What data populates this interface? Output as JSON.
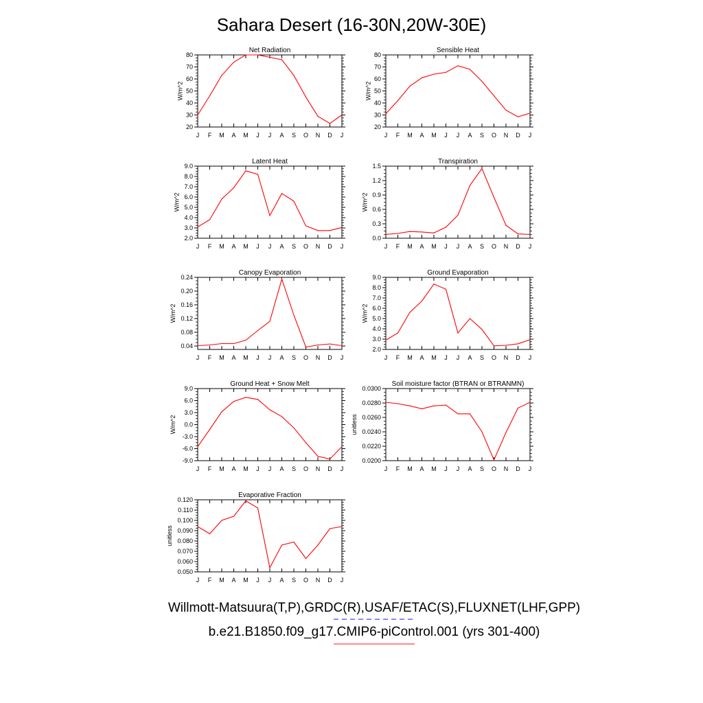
{
  "title": "Sahara Desert (16-30N,20W-30E)",
  "legend": {
    "line1": "Willmott-Matsuura(T,P),GRDC(R),USAF/ETAC(S),FLUXNET(LHF,GPP)",
    "line1_color": "#4040ff",
    "line2": "b.e21.B1850.f09_g17.CMIP6-piControl.001 (yrs 301-400)",
    "line2_color": "#ff4040"
  },
  "line_color": "#ff0000",
  "chart_data": [
    {
      "type": "line",
      "title": "Net Radiation",
      "ylabel": "W/m^2",
      "categories": [
        "J",
        "F",
        "M",
        "A",
        "M",
        "J",
        "J",
        "A",
        "S",
        "O",
        "N",
        "D",
        "J"
      ],
      "values": [
        30,
        46,
        63,
        74,
        80,
        80,
        78,
        76,
        63,
        45,
        29,
        23,
        30
      ],
      "ylim": [
        20,
        80
      ],
      "yticks": [
        "20",
        "30",
        "40",
        "50",
        "60",
        "70",
        "80"
      ]
    },
    {
      "type": "line",
      "title": "Sensible Heat",
      "ylabel": "W/m^2",
      "categories": [
        "J",
        "F",
        "M",
        "A",
        "M",
        "J",
        "J",
        "A",
        "S",
        "O",
        "N",
        "D",
        "J"
      ],
      "values": [
        31,
        42,
        54,
        61,
        64,
        65.5,
        71,
        68,
        58,
        46,
        34,
        28.5,
        31.5
      ],
      "ylim": [
        20,
        80
      ],
      "yticks": [
        "20",
        "30",
        "40",
        "50",
        "60",
        "70",
        "80"
      ]
    },
    {
      "type": "line",
      "title": "Latent Heat",
      "ylabel": "W/m^2",
      "categories": [
        "J",
        "F",
        "M",
        "A",
        "M",
        "J",
        "J",
        "A",
        "S",
        "O",
        "N",
        "D",
        "J"
      ],
      "values": [
        3.1,
        3.8,
        5.8,
        6.9,
        8.55,
        8.2,
        4.2,
        6.35,
        5.6,
        3.2,
        2.75,
        2.75,
        3.05
      ],
      "ylim": [
        2.0,
        9.0
      ],
      "yticks": [
        "2.0",
        "3.0",
        "4.0",
        "5.0",
        "6.0",
        "7.0",
        "8.0",
        "9.0"
      ]
    },
    {
      "type": "line",
      "title": "Transpiration",
      "ylabel": "W/m^2",
      "categories": [
        "J",
        "F",
        "M",
        "A",
        "M",
        "J",
        "J",
        "A",
        "S",
        "O",
        "N",
        "D",
        "J"
      ],
      "values": [
        0.08,
        0.1,
        0.14,
        0.13,
        0.11,
        0.23,
        0.48,
        1.1,
        1.45,
        0.85,
        0.27,
        0.09,
        0.08
      ],
      "ylim": [
        0.0,
        1.5
      ],
      "yticks": [
        "0.0",
        "0.3",
        "0.6",
        "0.9",
        "1.2",
        "1.5"
      ]
    },
    {
      "type": "line",
      "title": "Canopy Evaporation",
      "ylabel": "W/m^2",
      "categories": [
        "J",
        "F",
        "M",
        "A",
        "M",
        "J",
        "J",
        "A",
        "S",
        "O",
        "N",
        "D",
        "J"
      ],
      "values": [
        0.041,
        0.043,
        0.047,
        0.047,
        0.057,
        0.085,
        0.112,
        0.235,
        0.13,
        0.037,
        0.043,
        0.046,
        0.041
      ],
      "ylim": [
        0.03,
        0.24
      ],
      "yticks": [
        "0.04",
        "0.08",
        "0.12",
        "0.16",
        "0.20",
        "0.24"
      ]
    },
    {
      "type": "line",
      "title": "Ground Evaporation",
      "ylabel": "W/m^2",
      "categories": [
        "J",
        "F",
        "M",
        "A",
        "M",
        "J",
        "J",
        "A",
        "S",
        "O",
        "N",
        "D",
        "J"
      ],
      "values": [
        2.9,
        3.6,
        5.6,
        6.7,
        8.35,
        7.85,
        3.6,
        5.0,
        3.95,
        2.35,
        2.4,
        2.55,
        2.95
      ],
      "ylim": [
        2.0,
        9.0
      ],
      "yticks": [
        "2.0",
        "3.0",
        "4.0",
        "5.0",
        "6.0",
        "7.0",
        "8.0",
        "9.0"
      ]
    },
    {
      "type": "line",
      "title": "Ground Heat + Snow Melt",
      "ylabel": "W/m^2",
      "categories": [
        "J",
        "F",
        "M",
        "A",
        "M",
        "J",
        "J",
        "A",
        "S",
        "O",
        "N",
        "D",
        "J"
      ],
      "values": [
        -5.5,
        -1.2,
        3.2,
        5.8,
        6.8,
        6.3,
        3.7,
        2.0,
        -0.8,
        -4.5,
        -7.9,
        -8.6,
        -5.5
      ],
      "ylim": [
        -9.0,
        9.0
      ],
      "yticks": [
        "-9.0",
        "-6.0",
        "-3.0",
        "0.0",
        "3.0",
        "6.0",
        "9.0"
      ]
    },
    {
      "type": "line",
      "title": "Soil moisture factor (BTRAN or BTRANMN)",
      "ylabel": "unitless",
      "categories": [
        "J",
        "F",
        "M",
        "A",
        "M",
        "J",
        "J",
        "A",
        "S",
        "O",
        "N",
        "D",
        "J"
      ],
      "values": [
        0.0281,
        0.0279,
        0.0276,
        0.0272,
        0.0276,
        0.0277,
        0.0265,
        0.0265,
        0.024,
        0.0201,
        0.0239,
        0.0273,
        0.0281
      ],
      "ylim": [
        0.02,
        0.03
      ],
      "yticks": [
        "0.0200",
        "0.0220",
        "0.0240",
        "0.0260",
        "0.0280",
        "0.0300"
      ]
    },
    {
      "type": "line",
      "title": "Evaporative Fraction",
      "ylabel": "unitless",
      "categories": [
        "J",
        "F",
        "M",
        "A",
        "M",
        "J",
        "J",
        "A",
        "S",
        "O",
        "N",
        "D",
        "J"
      ],
      "values": [
        0.094,
        0.087,
        0.1,
        0.104,
        0.119,
        0.112,
        0.054,
        0.076,
        0.079,
        0.063,
        0.076,
        0.092,
        0.094
      ],
      "ylim": [
        0.05,
        0.12
      ],
      "yticks": [
        "0.050",
        "0.060",
        "0.070",
        "0.080",
        "0.090",
        "0.100",
        "0.110",
        "0.120"
      ]
    }
  ]
}
